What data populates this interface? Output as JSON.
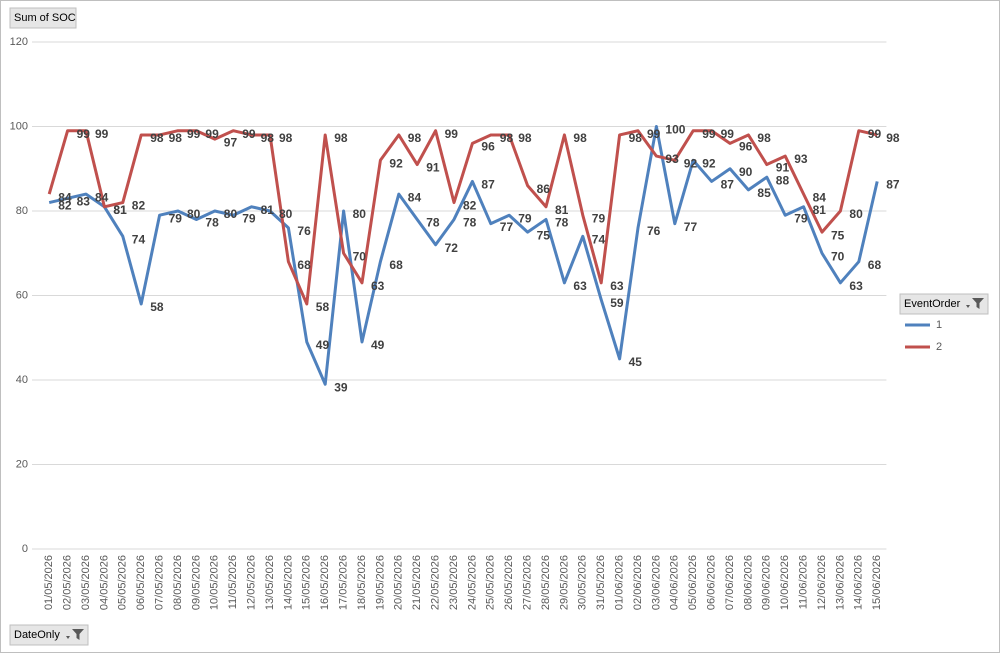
{
  "chart_data": {
    "type": "line",
    "value_field": "Sum of SOC",
    "axis_field": "DateOnly",
    "legend_title": "EventOrder",
    "categories": [
      "01/05/2026",
      "02/05/2026",
      "03/05/2026",
      "04/05/2026",
      "05/05/2026",
      "06/05/2026",
      "07/05/2026",
      "08/05/2026",
      "09/05/2026",
      "10/05/2026",
      "11/05/2026",
      "12/05/2026",
      "13/05/2026",
      "14/05/2026",
      "15/05/2026",
      "16/05/2026",
      "17/05/2026",
      "18/05/2026",
      "19/05/2026",
      "20/05/2026",
      "21/05/2026",
      "22/05/2026",
      "23/05/2026",
      "24/05/2026",
      "25/05/2026",
      "26/05/2026",
      "27/05/2026",
      "28/05/2026",
      "29/05/2026",
      "30/05/2026",
      "31/05/2026",
      "01/06/2026",
      "02/06/2026",
      "03/06/2026",
      "04/06/2026",
      "05/06/2026",
      "06/06/2026",
      "07/06/2026",
      "08/06/2026",
      "09/06/2026",
      "10/06/2026",
      "11/06/2026",
      "12/06/2026",
      "13/06/2026",
      "14/06/2026",
      "15/06/2026"
    ],
    "series": [
      {
        "name": "1",
        "color": "#4f81bd",
        "values": [
          82,
          83,
          84,
          81,
          74,
          58,
          79,
          80,
          78,
          80,
          79,
          81,
          80,
          76,
          49,
          39,
          80,
          49,
          68,
          84,
          78,
          72,
          78,
          87,
          77,
          79,
          75,
          78,
          63,
          74,
          59,
          45,
          76,
          100,
          77,
          92,
          87,
          90,
          85,
          88,
          79,
          81,
          70,
          63,
          68,
          87
        ]
      },
      {
        "name": "2",
        "color": "#c0504d",
        "values": [
          84,
          99,
          99,
          81,
          82,
          98,
          98,
          99,
          99,
          97,
          99,
          98,
          98,
          68,
          58,
          98,
          70,
          63,
          92,
          98,
          91,
          99,
          82,
          96,
          98,
          98,
          86,
          81,
          98,
          79,
          63,
          98,
          99,
          93,
          92,
          99,
          99,
          96,
          98,
          91,
          93,
          84,
          75,
          80,
          99,
          98
        ]
      }
    ],
    "ylim": [
      0,
      120
    ],
    "yticks": [
      0,
      20,
      40,
      60,
      80,
      100,
      120
    ],
    "grid": true,
    "data_labels": true
  }
}
